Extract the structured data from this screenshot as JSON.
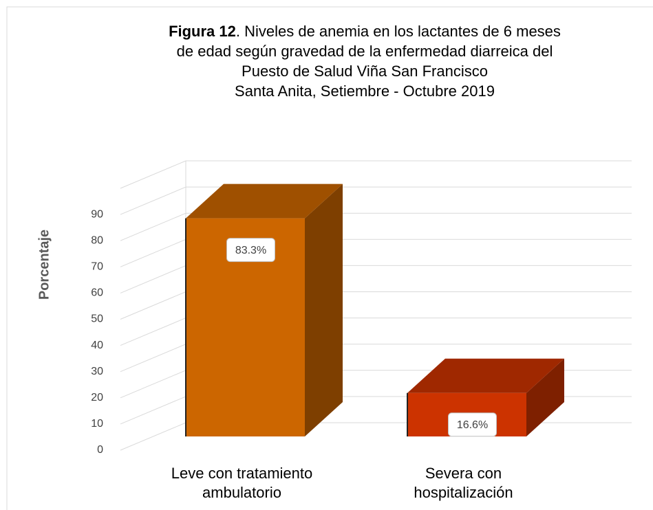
{
  "chart_data": {
    "type": "bar3d",
    "title_prefix": "Figura 12",
    "title_lines": [
      ". Niveles de anemia en los lactantes de 6 meses",
      "de edad según gravedad de la enfermedad diarreica del",
      "Puesto de Salud Viña San Francisco",
      "Santa Anita, Setiembre - Octubre 2019"
    ],
    "y_label": "Porcentaje",
    "categories": [
      "Leve con tratamiento ambulatorio",
      "Severa con hospitalización"
    ],
    "values": [
      83.3,
      16.6
    ],
    "value_labels": [
      "83.3%",
      "16.6%"
    ],
    "colors": [
      "#cc6600",
      "#cc3300"
    ],
    "ylim": [
      0,
      100
    ],
    "yticks": [
      0,
      10,
      20,
      30,
      40,
      50,
      60,
      70,
      80,
      90
    ],
    "grid": true
  }
}
